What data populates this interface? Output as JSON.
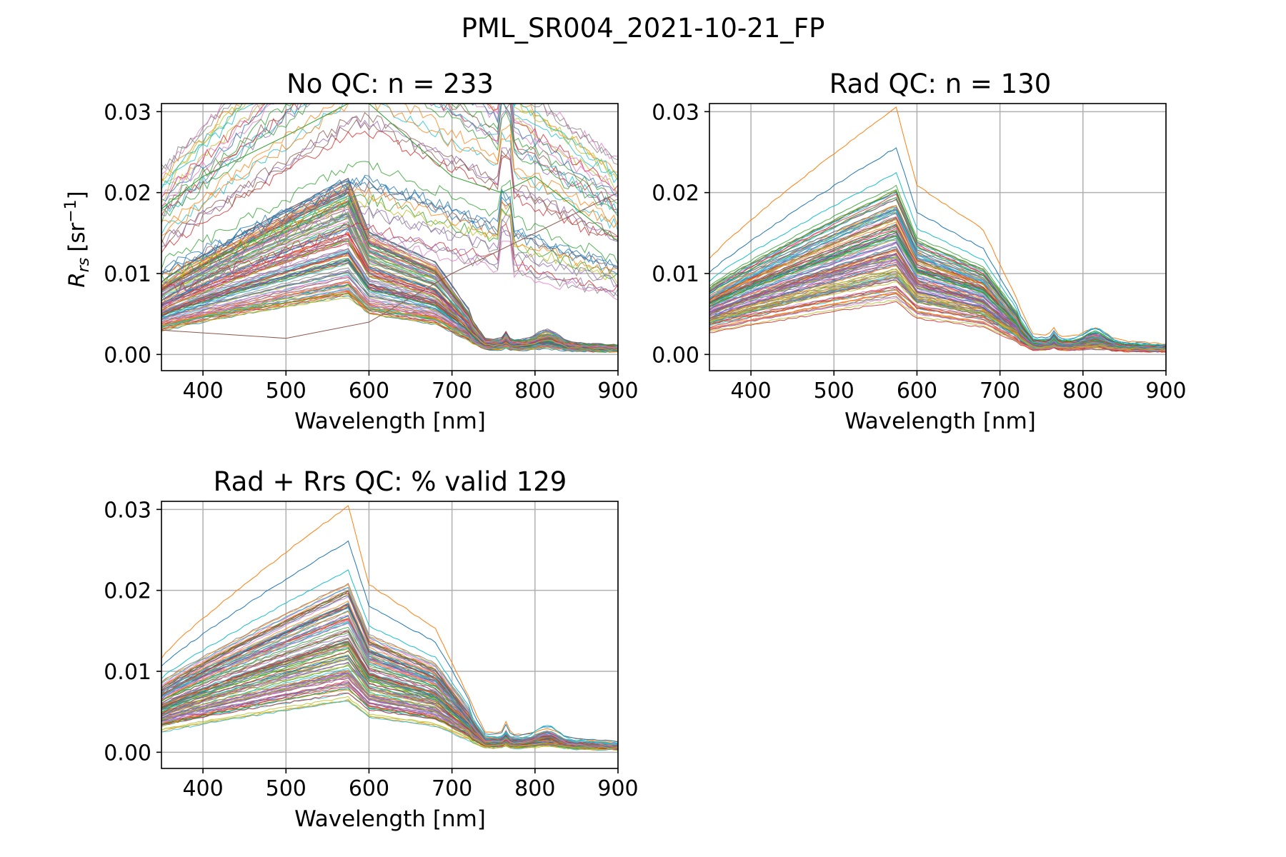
{
  "figure": {
    "suptitle": "PML_SR004_2021-10-21_FP"
  },
  "palette": [
    "#1f77b4",
    "#ff7f0e",
    "#2ca02c",
    "#d62728",
    "#9467bd",
    "#8c564b",
    "#e377c2",
    "#7f7f7f",
    "#bcbd22",
    "#17becf"
  ],
  "chart_data": [
    {
      "type": "line",
      "title": "No QC: n = 233",
      "xlabel": "Wavelength [nm]",
      "ylabel": "R_rs [sr^-1]",
      "ylabel_main": "R",
      "ylabel_sub": "rs",
      "ylabel_unit": "[sr",
      "ylabel_sup": "−1",
      "ylabel_close": "]",
      "xlim": [
        350,
        900
      ],
      "ylim": [
        -0.002,
        0.031
      ],
      "xticks": [
        400,
        500,
        600,
        700,
        800,
        900
      ],
      "yticks": [
        0.0,
        0.01,
        0.02,
        0.03
      ],
      "xtick_labels": [
        "400",
        "500",
        "600",
        "700",
        "800",
        "900"
      ],
      "ytick_labels": [
        "0.00",
        "0.01",
        "0.02",
        "0.03"
      ],
      "grid": true,
      "n_curves": 233,
      "typical_peak_range": [
        0.006,
        0.021
      ],
      "peak_wavelength": 575,
      "outlier_curves": [
        {
          "desc": "high noisy",
          "x": [
            350,
            400,
            500,
            575,
            600,
            700,
            760,
            800,
            900
          ],
          "y": [
            0.018,
            0.022,
            0.027,
            0.031,
            0.031,
            0.022,
            0.02,
            0.022,
            0.014
          ]
        },
        {
          "desc": "rising",
          "x": [
            350,
            500,
            600,
            700,
            900
          ],
          "y": [
            0.003,
            0.002,
            0.004,
            0.01,
            0.02
          ]
        }
      ]
    },
    {
      "type": "line",
      "title": "Rad QC: n = 130",
      "xlabel": "Wavelength [nm]",
      "xlim": [
        350,
        900
      ],
      "ylim": [
        -0.002,
        0.031
      ],
      "xticks": [
        400,
        500,
        600,
        700,
        800,
        900
      ],
      "yticks": [
        0.0,
        0.01,
        0.02,
        0.03
      ],
      "xtick_labels": [
        "400",
        "500",
        "600",
        "700",
        "800",
        "900"
      ],
      "ytick_labels": [
        "0.00",
        "0.01",
        "0.02",
        "0.03"
      ],
      "grid": true,
      "n_curves": 130,
      "typical_peak_range": [
        0.006,
        0.02
      ],
      "peak_wavelength": 575,
      "max_peak": 0.0303
    },
    {
      "type": "line",
      "title": "Rad + Rrs QC: % valid 129",
      "xlabel": "Wavelength [nm]",
      "xlim": [
        350,
        900
      ],
      "ylim": [
        -0.002,
        0.031
      ],
      "xticks": [
        400,
        500,
        600,
        700,
        800,
        900
      ],
      "yticks": [
        0.0,
        0.01,
        0.02,
        0.03
      ],
      "xtick_labels": [
        "400",
        "500",
        "600",
        "700",
        "800",
        "900"
      ],
      "ytick_labels": [
        "0.00",
        "0.01",
        "0.02",
        "0.03"
      ],
      "grid": true,
      "n_curves": 129,
      "typical_peak_range": [
        0.006,
        0.02
      ],
      "peak_wavelength": 575,
      "max_peak": 0.0303
    }
  ]
}
